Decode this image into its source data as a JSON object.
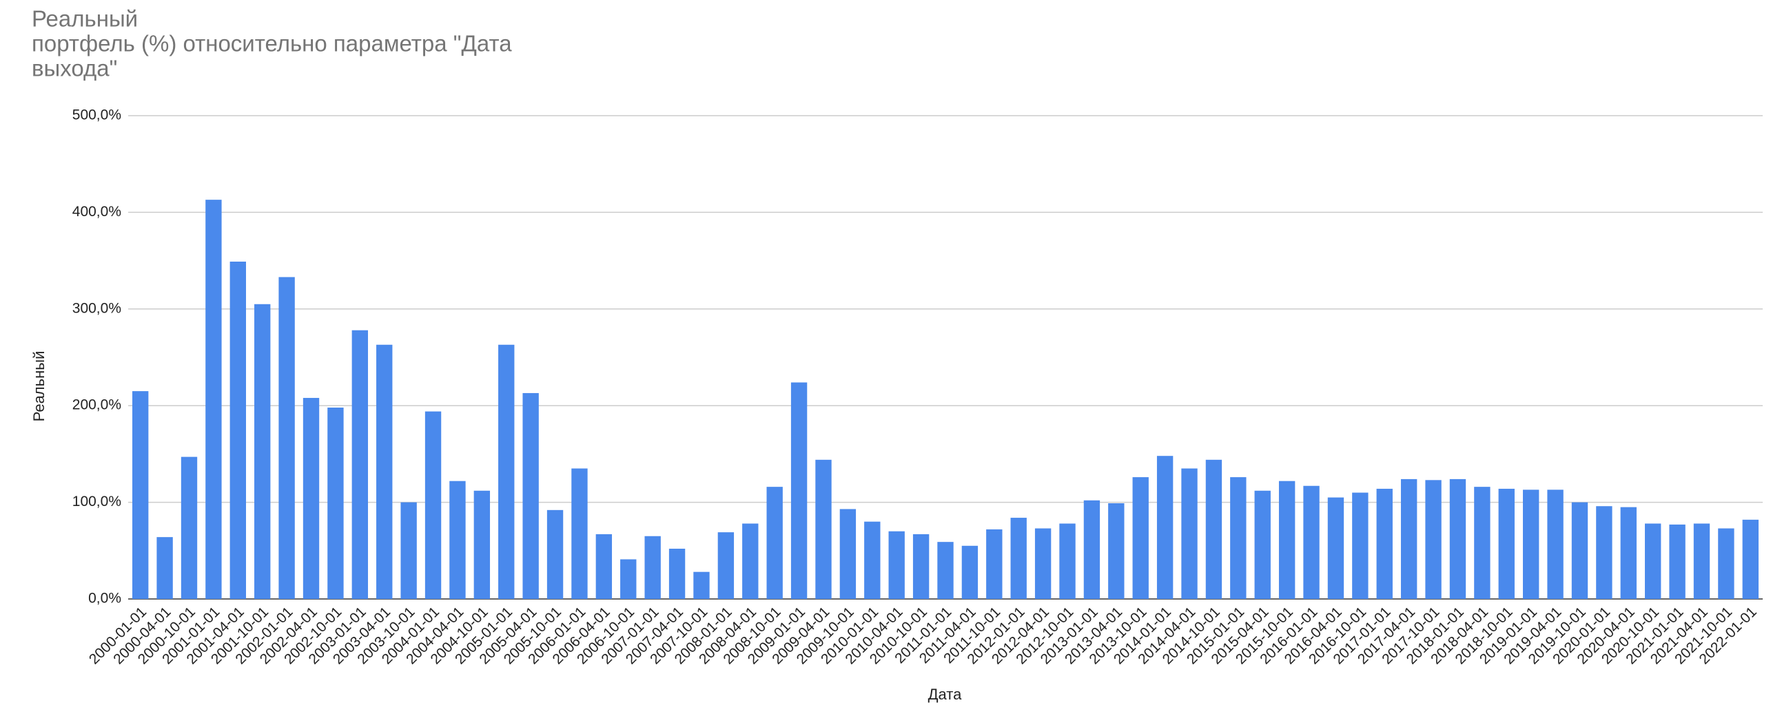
{
  "chart_data": {
    "type": "bar",
    "title": [
      "Реальный",
      "портфель (%) относительно параметра \"Дата",
      "выхода\""
    ],
    "x_label": "Дата",
    "y_label": "Реальный",
    "categories": [
      "2000-01-01",
      "2000-04-01",
      "2000-10-01",
      "2001-01-01",
      "2001-04-01",
      "2001-10-01",
      "2002-01-01",
      "2002-04-01",
      "2002-10-01",
      "2003-01-01",
      "2003-04-01",
      "2003-10-01",
      "2004-01-01",
      "2004-04-01",
      "2004-10-01",
      "2005-01-01",
      "2005-04-01",
      "2005-10-01",
      "2006-01-01",
      "2006-04-01",
      "2006-10-01",
      "2007-01-01",
      "2007-04-01",
      "2007-10-01",
      "2008-01-01",
      "2008-04-01",
      "2008-10-01",
      "2009-01-01",
      "2009-04-01",
      "2009-10-01",
      "2010-01-01",
      "2010-04-01",
      "2010-10-01",
      "2011-01-01",
      "2011-04-01",
      "2011-10-01",
      "2012-01-01",
      "2012-04-01",
      "2012-10-01",
      "2013-01-01",
      "2013-04-01",
      "2013-10-01",
      "2014-01-01",
      "2014-04-01",
      "2014-10-01",
      "2015-01-01",
      "2015-04-01",
      "2015-10-01",
      "2016-01-01",
      "2016-04-01",
      "2016-10-01",
      "2017-01-01",
      "2017-04-01",
      "2017-10-01",
      "2018-01-01",
      "2018-04-01",
      "2018-10-01",
      "2019-01-01",
      "2019-04-01",
      "2019-10-01",
      "2020-01-01",
      "2020-04-01",
      "2020-10-01",
      "2021-01-01",
      "2021-04-01",
      "2021-10-01",
      "2022-01-01"
    ],
    "values": [
      215,
      64,
      147,
      413,
      349,
      305,
      333,
      208,
      198,
      278,
      263,
      100,
      194,
      122,
      112,
      263,
      213,
      92,
      135,
      67,
      41,
      65,
      52,
      28,
      69,
      78,
      116,
      224,
      144,
      93,
      80,
      70,
      67,
      59,
      55,
      72,
      84,
      73,
      78,
      102,
      99,
      126,
      148,
      135,
      144,
      126,
      112,
      122,
      117,
      105,
      110,
      114,
      124,
      123,
      124,
      116,
      114,
      113,
      113,
      100,
      96,
      95,
      78,
      77,
      78,
      73,
      82
    ],
    "color": "#4a89ec",
    "ylim": [
      0,
      500
    ],
    "yticks": [
      {
        "value": 0,
        "label": "0,0%"
      },
      {
        "value": 100,
        "label": "100,0%"
      },
      {
        "value": 200,
        "label": "200,0%"
      },
      {
        "value": 300,
        "label": "300,0%"
      },
      {
        "value": 400,
        "label": "400,0%"
      },
      {
        "value": 500,
        "label": "500,0%"
      }
    ],
    "grid": true
  }
}
